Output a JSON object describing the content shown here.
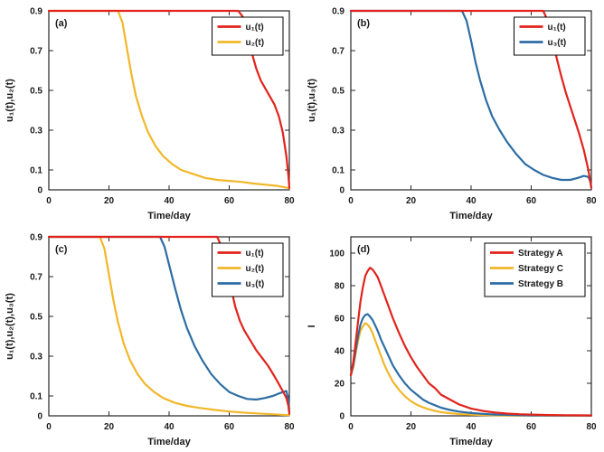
{
  "colors": {
    "axis": "#262626",
    "text": "#1a1a1a",
    "red": "#e2231c",
    "yellow": "#f2b72a",
    "blue": "#2e6da4"
  },
  "chart_data": [
    {
      "id": "a",
      "type": "line",
      "panel_label": "(a)",
      "xlabel": "Time/day",
      "ylabel": "u₁(t),u₂(t)",
      "xlim": [
        0,
        80
      ],
      "ylim": [
        0,
        0.9
      ],
      "xticks": [
        0,
        20,
        40,
        60,
        80
      ],
      "yticks": [
        0,
        0.1,
        0.3,
        0.5,
        0.7,
        0.9
      ],
      "legend_position": "top-right",
      "legend": [
        {
          "label": "u₁(t)",
          "color": "red"
        },
        {
          "label": "u₂(t)",
          "color": "yellow"
        }
      ],
      "series": [
        {
          "name": "u₂(t)",
          "color": "yellow",
          "points": [
            [
              0,
              0.9
            ],
            [
              23,
              0.9
            ],
            [
              24.5,
              0.84
            ],
            [
              26,
              0.71
            ],
            [
              27.5,
              0.58
            ],
            [
              29,
              0.47
            ],
            [
              31,
              0.37
            ],
            [
              33,
              0.29
            ],
            [
              35.5,
              0.22
            ],
            [
              38,
              0.17
            ],
            [
              41,
              0.13
            ],
            [
              44,
              0.1
            ],
            [
              48,
              0.08
            ],
            [
              52,
              0.06
            ],
            [
              56,
              0.05
            ],
            [
              60,
              0.045
            ],
            [
              64,
              0.04
            ],
            [
              68,
              0.032
            ],
            [
              72,
              0.026
            ],
            [
              76,
              0.02
            ],
            [
              80,
              0.008
            ]
          ]
        },
        {
          "name": "u₁(t)",
          "color": "red",
          "points": [
            [
              0,
              0.9
            ],
            [
              63,
              0.9
            ],
            [
              64.5,
              0.87
            ],
            [
              66,
              0.79
            ],
            [
              67.5,
              0.69
            ],
            [
              69,
              0.61
            ],
            [
              70.5,
              0.55
            ],
            [
              72,
              0.51
            ],
            [
              73.5,
              0.47
            ],
            [
              75,
              0.43
            ],
            [
              76.5,
              0.37
            ],
            [
              77.8,
              0.29
            ],
            [
              79,
              0.17
            ],
            [
              79.7,
              0.07
            ],
            [
              80,
              0.01
            ]
          ]
        }
      ]
    },
    {
      "id": "b",
      "type": "line",
      "panel_label": "(b)",
      "xlabel": "Time/day",
      "ylabel": "u₁(t),u₃(t)",
      "xlim": [
        0,
        80
      ],
      "ylim": [
        0,
        0.9
      ],
      "xticks": [
        0,
        20,
        40,
        60,
        80
      ],
      "yticks": [
        0,
        0.1,
        0.3,
        0.5,
        0.7,
        0.9
      ],
      "legend_position": "top-right",
      "legend": [
        {
          "label": "u₁(t)",
          "color": "red"
        },
        {
          "label": "u₃(t)",
          "color": "blue"
        }
      ],
      "series": [
        {
          "name": "u₃(t)",
          "color": "blue",
          "points": [
            [
              0,
              0.9
            ],
            [
              37,
              0.9
            ],
            [
              38.5,
              0.85
            ],
            [
              40,
              0.75
            ],
            [
              41.5,
              0.64
            ],
            [
              43,
              0.55
            ],
            [
              45,
              0.45
            ],
            [
              47,
              0.37
            ],
            [
              49.5,
              0.3
            ],
            [
              52,
              0.24
            ],
            [
              55,
              0.18
            ],
            [
              58,
              0.13
            ],
            [
              61,
              0.1
            ],
            [
              64,
              0.075
            ],
            [
              67,
              0.06
            ],
            [
              70,
              0.05
            ],
            [
              73,
              0.05
            ],
            [
              75.5,
              0.06
            ],
            [
              77.5,
              0.07
            ],
            [
              79,
              0.065
            ],
            [
              79.7,
              0.04
            ],
            [
              80,
              0.01
            ]
          ]
        },
        {
          "name": "u₁(t)",
          "color": "red",
          "points": [
            [
              0,
              0.9
            ],
            [
              64,
              0.9
            ],
            [
              65.5,
              0.85
            ],
            [
              67,
              0.76
            ],
            [
              68.5,
              0.66
            ],
            [
              70,
              0.57
            ],
            [
              71.5,
              0.49
            ],
            [
              73,
              0.42
            ],
            [
              74.5,
              0.35
            ],
            [
              76,
              0.28
            ],
            [
              77.5,
              0.2
            ],
            [
              79,
              0.1
            ],
            [
              80,
              0.01
            ]
          ]
        }
      ]
    },
    {
      "id": "c",
      "type": "line",
      "panel_label": "(c)",
      "xlabel": "Time/day",
      "ylabel": "u₁(t),u₂(t),u₃(t)",
      "xlim": [
        0,
        80
      ],
      "ylim": [
        0,
        0.9
      ],
      "xticks": [
        0,
        20,
        40,
        60,
        80
      ],
      "yticks": [
        0,
        0.1,
        0.3,
        0.5,
        0.7,
        0.9
      ],
      "legend_position": "top-right",
      "legend": [
        {
          "label": "u₁(t)",
          "color": "red"
        },
        {
          "label": "u₂(t)",
          "color": "yellow"
        },
        {
          "label": "u₃(t)",
          "color": "blue"
        }
      ],
      "series": [
        {
          "name": "u₂(t)",
          "color": "yellow",
          "points": [
            [
              0,
              0.9
            ],
            [
              17,
              0.9
            ],
            [
              18.5,
              0.84
            ],
            [
              20,
              0.71
            ],
            [
              21.5,
              0.58
            ],
            [
              23,
              0.47
            ],
            [
              25,
              0.36
            ],
            [
              27,
              0.28
            ],
            [
              29.5,
              0.21
            ],
            [
              32,
              0.16
            ],
            [
              35,
              0.12
            ],
            [
              38,
              0.09
            ],
            [
              42,
              0.065
            ],
            [
              46,
              0.05
            ],
            [
              50,
              0.04
            ],
            [
              55,
              0.03
            ],
            [
              60,
              0.022
            ],
            [
              66,
              0.015
            ],
            [
              72,
              0.01
            ],
            [
              80,
              0.003
            ]
          ]
        },
        {
          "name": "u₃(t)",
          "color": "blue",
          "points": [
            [
              0,
              0.9
            ],
            [
              37,
              0.9
            ],
            [
              38.5,
              0.85
            ],
            [
              40,
              0.76
            ],
            [
              42,
              0.64
            ],
            [
              44,
              0.53
            ],
            [
              46,
              0.44
            ],
            [
              48.5,
              0.35
            ],
            [
              51,
              0.28
            ],
            [
              54,
              0.21
            ],
            [
              57,
              0.16
            ],
            [
              60,
              0.12
            ],
            [
              63,
              0.1
            ],
            [
              66,
              0.085
            ],
            [
              69,
              0.082
            ],
            [
              72,
              0.09
            ],
            [
              74.5,
              0.1
            ],
            [
              77,
              0.115
            ],
            [
              79,
              0.125
            ],
            [
              79.7,
              0.08
            ],
            [
              80,
              0.02
            ]
          ]
        },
        {
          "name": "u₁(t)",
          "color": "red",
          "points": [
            [
              0,
              0.9
            ],
            [
              56,
              0.9
            ],
            [
              57.5,
              0.85
            ],
            [
              59,
              0.76
            ],
            [
              60.5,
              0.65
            ],
            [
              62,
              0.55
            ],
            [
              63.5,
              0.48
            ],
            [
              65,
              0.43
            ],
            [
              67,
              0.38
            ],
            [
              69,
              0.33
            ],
            [
              71,
              0.29
            ],
            [
              73,
              0.25
            ],
            [
              75,
              0.2
            ],
            [
              76.5,
              0.16
            ],
            [
              78,
              0.12
            ],
            [
              79,
              0.09
            ],
            [
              79.7,
              0.05
            ],
            [
              80,
              0.01
            ]
          ]
        }
      ]
    },
    {
      "id": "d",
      "type": "line",
      "panel_label": "(d)",
      "xlabel": "Time/day",
      "ylabel": "I",
      "xlim": [
        0,
        80
      ],
      "ylim": [
        0,
        110
      ],
      "xticks": [
        0,
        20,
        40,
        60,
        80
      ],
      "yticks": [
        0,
        20,
        40,
        60,
        80,
        100
      ],
      "legend_position": "top-right",
      "legend": [
        {
          "label": "Strategy A",
          "color": "red"
        },
        {
          "label": "Strategy C",
          "color": "yellow"
        },
        {
          "label": "Strategy B",
          "color": "blue"
        }
      ],
      "series": [
        {
          "name": "Strategy C",
          "color": "yellow",
          "points": [
            [
              0,
              25
            ],
            [
              0.8,
              30
            ],
            [
              1.6,
              38
            ],
            [
              2.4,
              46
            ],
            [
              3.2,
              52
            ],
            [
              4,
              55
            ],
            [
              4.8,
              57
            ],
            [
              5.6,
              56
            ],
            [
              6.4,
              54
            ],
            [
              7.2,
              51
            ],
            [
              8,
              47
            ],
            [
              9,
              42
            ],
            [
              10,
              37
            ],
            [
              11,
              32
            ],
            [
              12,
              28
            ],
            [
              14,
              21
            ],
            [
              16,
              16
            ],
            [
              18,
              12
            ],
            [
              20,
              9
            ],
            [
              22,
              6.8
            ],
            [
              24,
              5.2
            ],
            [
              26,
              4
            ],
            [
              28,
              3
            ],
            [
              30,
              2.3
            ],
            [
              33,
              1.6
            ],
            [
              36,
              1.1
            ],
            [
              40,
              0.7
            ],
            [
              44,
              0.5
            ],
            [
              48,
              0.35
            ],
            [
              52,
              0.25
            ],
            [
              60,
              0.15
            ],
            [
              70,
              0.1
            ],
            [
              80,
              0.05
            ]
          ]
        },
        {
          "name": "Strategy B",
          "color": "blue",
          "points": [
            [
              0,
              25
            ],
            [
              0.8,
              31
            ],
            [
              1.6,
              40
            ],
            [
              2.4,
              49
            ],
            [
              3.2,
              56
            ],
            [
              4,
              60
            ],
            [
              4.8,
              62
            ],
            [
              5.6,
              62.5
            ],
            [
              6.4,
              61
            ],
            [
              7.2,
              59
            ],
            [
              8,
              56
            ],
            [
              9,
              52
            ],
            [
              10,
              47
            ],
            [
              11,
              43
            ],
            [
              12,
              39
            ],
            [
              14,
              31
            ],
            [
              16,
              25
            ],
            [
              18,
              20
            ],
            [
              20,
              16
            ],
            [
              22,
              13
            ],
            [
              24,
              10
            ],
            [
              26,
              8
            ],
            [
              28,
              6.5
            ],
            [
              30,
              5
            ],
            [
              33,
              3.6
            ],
            [
              36,
              2.6
            ],
            [
              40,
              1.7
            ],
            [
              44,
              1.2
            ],
            [
              48,
              0.8
            ],
            [
              52,
              0.6
            ],
            [
              56,
              0.4
            ],
            [
              60,
              0.3
            ],
            [
              70,
              0.2
            ],
            [
              80,
              0.1
            ]
          ]
        },
        {
          "name": "Strategy A",
          "color": "red",
          "points": [
            [
              0,
              25
            ],
            [
              0.8,
              33
            ],
            [
              1.6,
              45
            ],
            [
              2.4,
              58
            ],
            [
              3.2,
              70
            ],
            [
              4,
              79
            ],
            [
              4.8,
              86
            ],
            [
              5.6,
              89
            ],
            [
              6.4,
              91
            ],
            [
              7.2,
              90
            ],
            [
              8,
              88
            ],
            [
              9,
              85
            ],
            [
              10,
              80
            ],
            [
              11,
              75
            ],
            [
              12,
              70
            ],
            [
              14,
              60
            ],
            [
              16,
              51
            ],
            [
              18,
              43
            ],
            [
              20,
              36
            ],
            [
              22,
              30
            ],
            [
              24,
              25
            ],
            [
              26,
              20
            ],
            [
              28,
              17
            ],
            [
              30,
              13
            ],
            [
              33,
              10
            ],
            [
              36,
              7
            ],
            [
              40,
              4.5
            ],
            [
              44,
              3
            ],
            [
              48,
              2
            ],
            [
              52,
              1.4
            ],
            [
              56,
              1
            ],
            [
              60,
              0.8
            ],
            [
              66,
              0.5
            ],
            [
              72,
              0.4
            ],
            [
              80,
              0.3
            ]
          ]
        }
      ]
    }
  ]
}
